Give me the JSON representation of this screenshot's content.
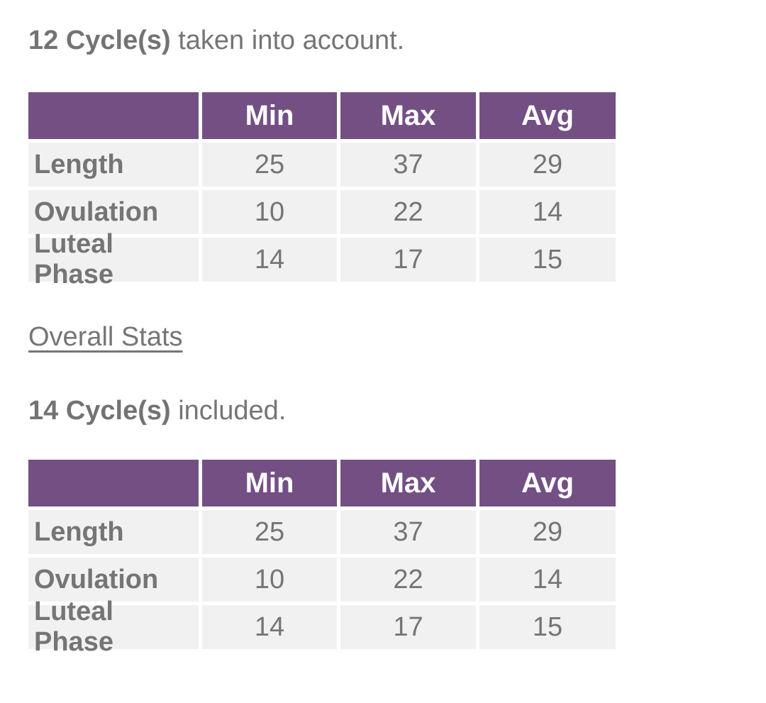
{
  "colors": {
    "header_purple": "#744F84",
    "row_gray": "#f1f1f1",
    "text_gray": "#757575",
    "header_text": "#ffffff"
  },
  "section_cycles": {
    "count": "12 Cycle(s)",
    "suffix": " taken into account.",
    "table": {
      "columns": [
        "Min",
        "Max",
        "Avg"
      ],
      "rows": [
        {
          "label": "Length",
          "min": "25",
          "max": "37",
          "avg": "29"
        },
        {
          "label": "Ovulation",
          "min": "10",
          "max": "22",
          "avg": "14"
        },
        {
          "label": "Luteal Phase",
          "min": "14",
          "max": "17",
          "avg": "15"
        }
      ]
    }
  },
  "overall_stats": {
    "label": "Overall Stats"
  },
  "section_overall": {
    "count": "14 Cycle(s)",
    "suffix": " included.",
    "table": {
      "columns": [
        "Min",
        "Max",
        "Avg"
      ],
      "rows": [
        {
          "label": "Length",
          "min": "25",
          "max": "37",
          "avg": "29"
        },
        {
          "label": "Ovulation",
          "min": "10",
          "max": "22",
          "avg": "14"
        },
        {
          "label": "Luteal Phase",
          "min": "14",
          "max": "17",
          "avg": "15"
        }
      ]
    }
  }
}
